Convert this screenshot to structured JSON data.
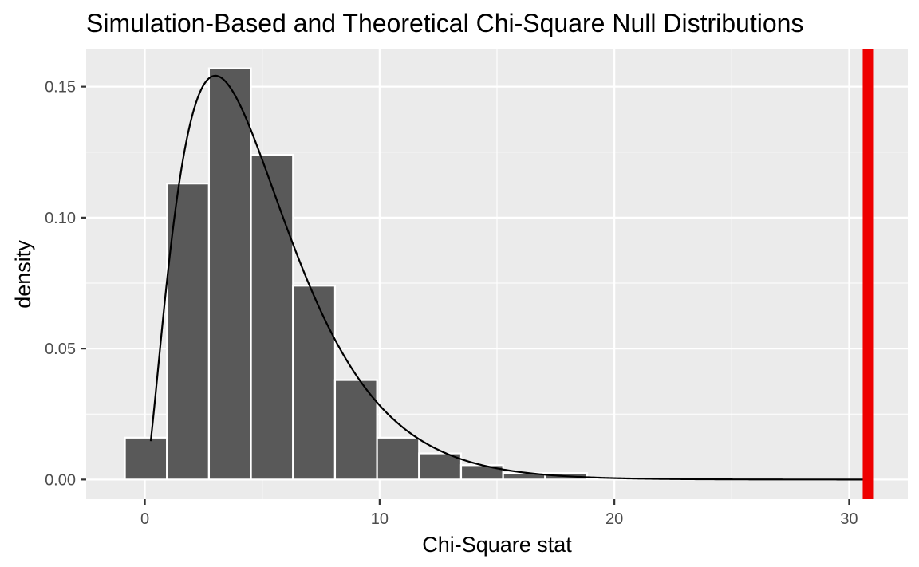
{
  "chart_data": {
    "type": "bar",
    "title": "Simulation-Based and Theoretical Chi-Square Null Distributions",
    "xlabel": "Chi-Square stat",
    "ylabel": "density",
    "xlim": [
      -2.5,
      32.5
    ],
    "ylim": [
      -0.0075,
      0.1645
    ],
    "x_ticks": [
      0,
      10,
      20,
      30
    ],
    "x_tick_labels": [
      "0",
      "10",
      "20",
      "30"
    ],
    "y_ticks": [
      0.0,
      0.05,
      0.1,
      0.15
    ],
    "y_tick_labels": [
      "0.00",
      "0.05",
      "0.10",
      "0.15"
    ],
    "grid": true,
    "histogram": {
      "bin_width": 1.79,
      "bins": [
        {
          "x_start": -0.85,
          "x_end": 0.94,
          "density": 0.016
        },
        {
          "x_start": 0.94,
          "x_end": 2.73,
          "density": 0.113
        },
        {
          "x_start": 2.73,
          "x_end": 4.52,
          "density": 0.157
        },
        {
          "x_start": 4.52,
          "x_end": 6.31,
          "density": 0.124
        },
        {
          "x_start": 6.31,
          "x_end": 8.1,
          "density": 0.074
        },
        {
          "x_start": 8.1,
          "x_end": 9.89,
          "density": 0.038
        },
        {
          "x_start": 9.89,
          "x_end": 11.68,
          "density": 0.016
        },
        {
          "x_start": 11.68,
          "x_end": 13.47,
          "density": 0.01
        },
        {
          "x_start": 13.47,
          "x_end": 15.26,
          "density": 0.0055
        },
        {
          "x_start": 15.26,
          "x_end": 17.05,
          "density": 0.0025
        },
        {
          "x_start": 17.05,
          "x_end": 18.84,
          "density": 0.0025
        }
      ],
      "fill": "#595959",
      "outline": "#ffffff"
    },
    "theoretical_curve": {
      "distribution": "chi-square",
      "df": 5,
      "x_range": [
        0.25,
        30.8
      ],
      "color": "#000000"
    },
    "observed_stat": {
      "value": 30.8,
      "color": "#ee0000"
    },
    "colors": {
      "panel_background": "#ebebeb",
      "grid": "#ffffff"
    }
  }
}
